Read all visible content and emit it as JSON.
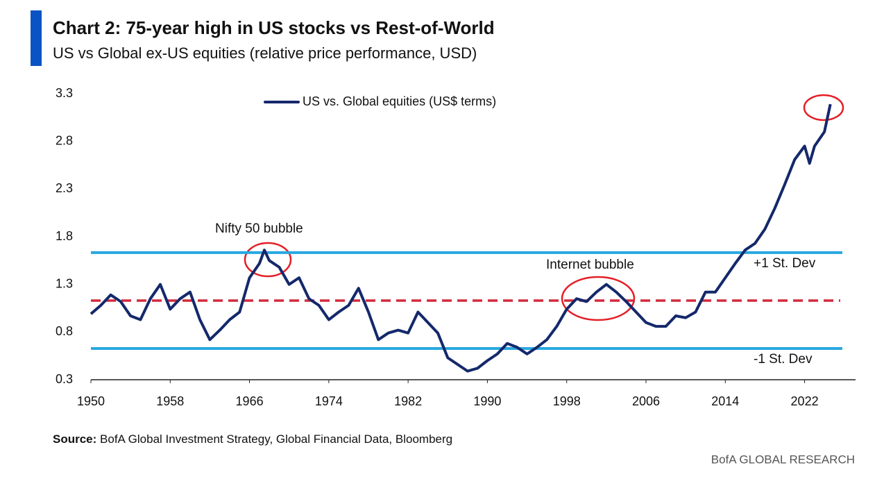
{
  "chart_data": {
    "type": "line",
    "title": "Chart 2: 75-year high in US stocks vs Rest-of-World",
    "subtitle": "US vs Global ex-US equities (relative price performance, USD)",
    "x": [
      1950,
      1951,
      1952,
      1953,
      1954,
      1955,
      1956,
      1957,
      1958,
      1959,
      1960,
      1961,
      1962,
      1963,
      1964,
      1965,
      1966,
      1967,
      1967.5,
      1968,
      1969,
      1970,
      1971,
      1972,
      1973,
      1974,
      1975,
      1976,
      1977,
      1978,
      1979,
      1980,
      1981,
      1982,
      1983,
      1984,
      1985,
      1986,
      1987,
      1988,
      1989,
      1990,
      1991,
      1992,
      1993,
      1994,
      1995,
      1996,
      1997,
      1998,
      1999,
      2000,
      2001,
      2002,
      2003,
      2004,
      2005,
      2006,
      2007,
      2008,
      2009,
      2010,
      2011,
      2012,
      2013,
      2014,
      2015,
      2016,
      2017,
      2018,
      2019,
      2020,
      2021,
      2022,
      2022.5,
      2023,
      2024,
      2024.6
    ],
    "series": [
      {
        "name": "US vs. Global equities (US$ terms)",
        "color": "#14286b",
        "values": [
          0.99,
          1.08,
          1.19,
          1.12,
          0.97,
          0.93,
          1.15,
          1.3,
          1.04,
          1.15,
          1.22,
          0.93,
          0.72,
          0.82,
          0.93,
          1.01,
          1.37,
          1.52,
          1.66,
          1.55,
          1.48,
          1.3,
          1.37,
          1.15,
          1.08,
          0.93,
          1.01,
          1.08,
          1.26,
          1.01,
          0.72,
          0.79,
          0.82,
          0.79,
          1.01,
          0.9,
          0.79,
          0.53,
          0.46,
          0.39,
          0.42,
          0.5,
          0.57,
          0.68,
          0.64,
          0.57,
          0.64,
          0.72,
          0.86,
          1.04,
          1.15,
          1.12,
          1.22,
          1.3,
          1.22,
          1.12,
          1.01,
          0.9,
          0.86,
          0.86,
          0.97,
          0.95,
          1.01,
          1.22,
          1.22,
          1.37,
          1.52,
          1.66,
          1.73,
          1.88,
          2.1,
          2.35,
          2.61,
          2.75,
          2.57,
          2.75,
          2.9,
          3.19
        ]
      }
    ],
    "xlim": [
      1950,
      2027
    ],
    "xticks": [
      1950,
      1958,
      1966,
      1974,
      1982,
      1990,
      1998,
      2006,
      2014,
      2022
    ],
    "ylim": [
      0.3,
      3.3
    ],
    "yticks": [
      0.3,
      0.8,
      1.3,
      1.8,
      2.3,
      2.8,
      3.3
    ],
    "grid": false,
    "legend": "top",
    "reference_lines": [
      {
        "value": 1.633,
        "label": "+1 St. Dev",
        "color": "#29a8e0",
        "style": "solid"
      },
      {
        "value": 1.13,
        "color": "#d42a3c",
        "style": "dashed"
      },
      {
        "value": 0.628,
        "label": "-1 St. Dev",
        "color": "#29a8e0",
        "style": "solid"
      }
    ],
    "annotations": [
      "Nifty 50 bubble",
      "Internet bubble"
    ],
    "source_label": "Source:",
    "source": "BofA Global Investment Strategy, Global Financial Data, Bloomberg",
    "footer": "BofA GLOBAL RESEARCH"
  }
}
